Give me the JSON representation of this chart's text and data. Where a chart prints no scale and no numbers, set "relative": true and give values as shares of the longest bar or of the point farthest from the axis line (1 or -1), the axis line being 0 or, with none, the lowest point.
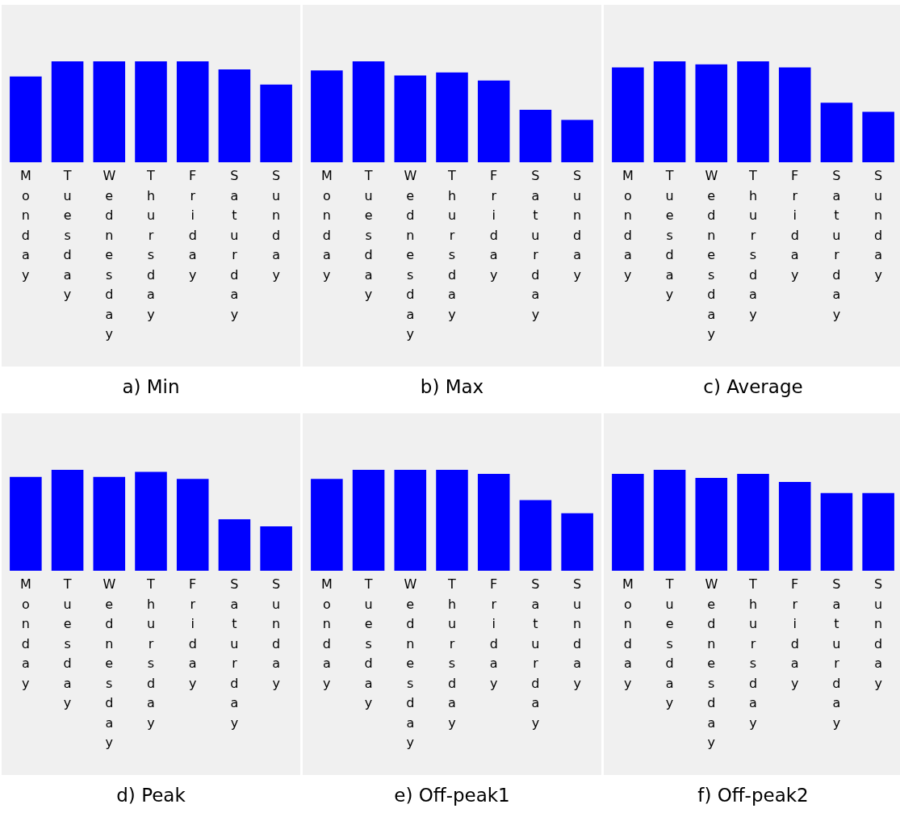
{
  "chart_data": [
    {
      "type": "bar",
      "title": "a) Min",
      "relative": true,
      "color": "#0000ff",
      "categories": [
        "Monday",
        "Tuesday",
        "Wednesday",
        "Thursday",
        "Friday",
        "Saturday",
        "Sunday"
      ],
      "values": [
        0.85,
        1,
        1,
        1,
        1,
        0.92,
        0.77
      ]
    },
    {
      "type": "bar",
      "title": "b) Max",
      "relative": true,
      "color": "#0000ff",
      "categories": [
        "Monday",
        "Tuesday",
        "Wednesday",
        "Thursday",
        "Friday",
        "Saturday",
        "Sunday"
      ],
      "values": [
        0.91,
        1,
        0.86,
        0.89,
        0.81,
        0.52,
        0.42
      ]
    },
    {
      "type": "bar",
      "title": "c) Average",
      "relative": true,
      "color": "#0000ff",
      "categories": [
        "Monday",
        "Tuesday",
        "Wednesday",
        "Thursday",
        "Friday",
        "Saturday",
        "Sunday"
      ],
      "values": [
        0.94,
        1,
        0.97,
        1,
        0.94,
        0.59,
        0.5
      ]
    },
    {
      "type": "bar",
      "title": "d) Peak",
      "relative": true,
      "color": "#0000ff",
      "categories": [
        "Monday",
        "Tuesday",
        "Wednesday",
        "Thursday",
        "Friday",
        "Saturday",
        "Sunday"
      ],
      "values": [
        0.93,
        1,
        0.93,
        0.98,
        0.91,
        0.51,
        0.44
      ]
    },
    {
      "type": "bar",
      "title": "e) Off-peak1",
      "relative": true,
      "color": "#0000ff",
      "categories": [
        "Monday",
        "Tuesday",
        "Wednesday",
        "Thursday",
        "Friday",
        "Saturday",
        "Sunday"
      ],
      "values": [
        0.91,
        1,
        1,
        1,
        0.96,
        0.7,
        0.57
      ]
    },
    {
      "type": "bar",
      "title": "f) Off-peak2",
      "relative": true,
      "color": "#0000ff",
      "categories": [
        "Monday",
        "Tuesday",
        "Wednesday",
        "Thursday",
        "Friday",
        "Saturday",
        "Sunday"
      ],
      "values": [
        0.96,
        1,
        0.92,
        0.96,
        0.88,
        0.77,
        0.77
      ]
    }
  ]
}
